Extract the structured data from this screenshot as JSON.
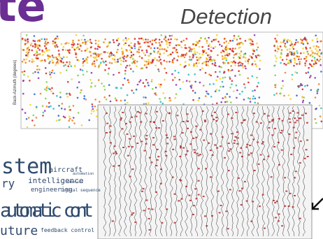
{
  "header": {
    "title_fragment": "te",
    "subtitle": "Detection"
  },
  "scatter_panel": {
    "y_axis_label": "Back-Azimuth (degrees)"
  },
  "word_cloud": {
    "words": [
      "stem",
      "aircraft",
      "automation",
      "ry",
      "intelligence",
      "robotics",
      "engineering",
      "logical sequence",
      "automatic cont",
      "uture",
      "feedback control"
    ]
  }
}
